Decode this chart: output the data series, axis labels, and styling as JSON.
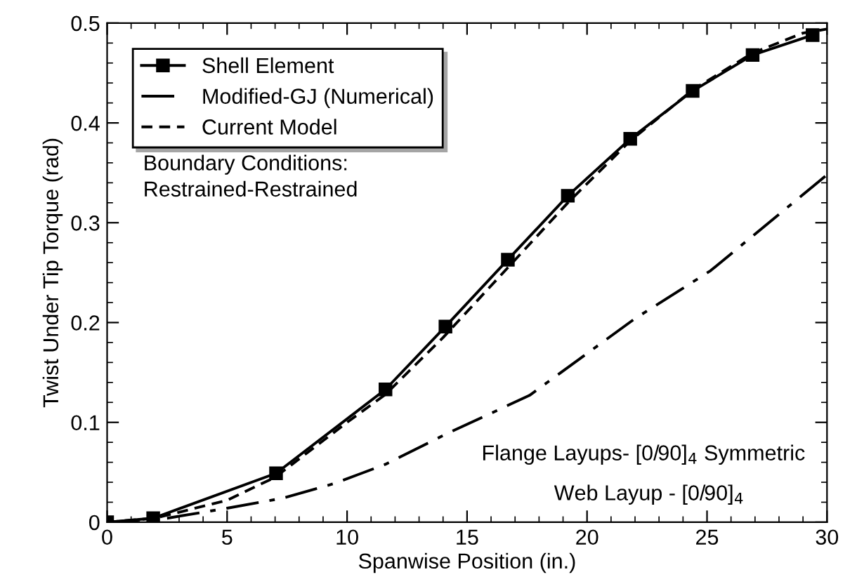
{
  "chart_data": {
    "type": "line",
    "xlabel": "Spanwise Position (in.)",
    "ylabel": "Twist Under Tip Torque (rad)",
    "xlim": [
      0,
      30
    ],
    "ylim": [
      0,
      0.5
    ],
    "xticks": [
      0,
      5,
      10,
      15,
      20,
      25,
      30
    ],
    "yticks": [
      0,
      0.1,
      0.2,
      0.3,
      0.4,
      0.5
    ],
    "grid": false,
    "legend": "top left",
    "series": [
      {
        "name": "Shell Element",
        "color": "#000000",
        "marker": "square",
        "line_style": "solid",
        "x": [
          0,
          1.92,
          7.04,
          11.6,
          14.1,
          16.7,
          19.2,
          21.8,
          24.4,
          26.9,
          29.4
        ],
        "values": [
          0,
          0.004,
          0.049,
          0.133,
          0.196,
          0.263,
          0.327,
          0.384,
          0.432,
          0.468,
          0.488
        ]
      },
      {
        "name": "Modified-GJ (Numerical)",
        "color": "#000000",
        "marker": "none",
        "line_style": "dashdot",
        "x": [
          0,
          2.5,
          5,
          7.3,
          9.5,
          11.6,
          14.1,
          17.6,
          22,
          25.15,
          30
        ],
        "values": [
          0,
          0.004,
          0.014,
          0.024,
          0.039,
          0.058,
          0.088,
          0.127,
          0.204,
          0.252,
          0.348
        ]
      },
      {
        "name": "Current Model",
        "color": "#000000",
        "marker": "none",
        "line_style": "dashed",
        "x": [
          0,
          2,
          5,
          7,
          10,
          11.6,
          14,
          16.7,
          19.2,
          21.8,
          24.4,
          26.9,
          29,
          30
        ],
        "values": [
          0,
          0.004,
          0.022,
          0.045,
          0.1,
          0.128,
          0.185,
          0.255,
          0.32,
          0.382,
          0.433,
          0.47,
          0.49,
          0.494
        ]
      }
    ],
    "annotations": [
      "Boundary Conditions:\nRestrained-Restrained",
      "Flange Layups- [0/90]$_{4}$ Symmetric",
      "Web Layup - [0/90]$_{4}$"
    ]
  }
}
